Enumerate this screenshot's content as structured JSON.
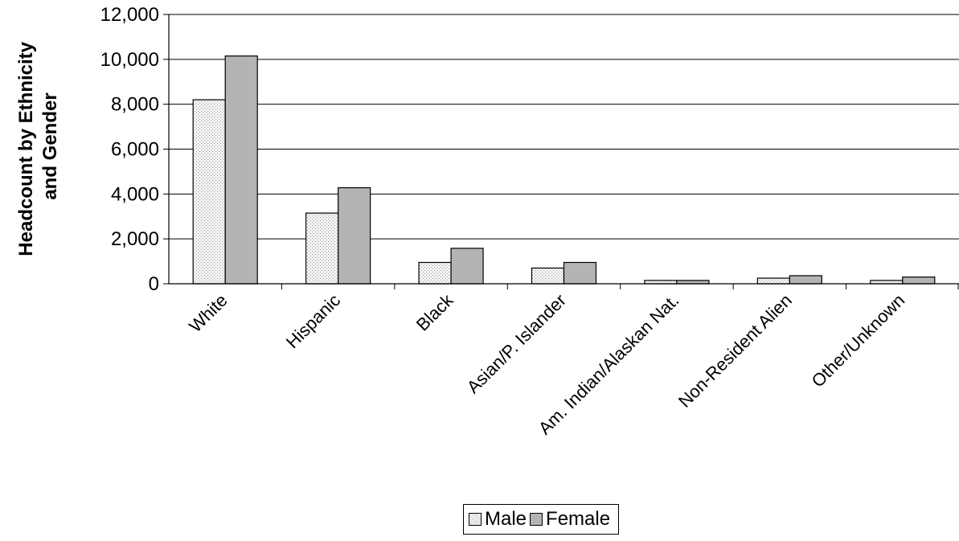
{
  "chart_data": {
    "type": "bar",
    "ylabel_lines": [
      "Headcount by Ethnicity",
      "and Gender"
    ],
    "ylim": [
      0,
      12000
    ],
    "ytick_values": [
      0,
      2000,
      4000,
      6000,
      8000,
      10000,
      12000
    ],
    "ytick_labels": [
      "0",
      "2,000",
      "4,000",
      "6,000",
      "8,000",
      "10,000",
      "12,000"
    ],
    "grid": true,
    "legend": "bottom",
    "categories": [
      "White",
      "Hispanic",
      "Black",
      "Asian/P. Islander",
      "Am. Indian/Alaskan Nat.",
      "Non-Resident Alien",
      "Other/Unknown"
    ],
    "series": [
      {
        "name": "Male",
        "color": "#ececec",
        "values": [
          8200,
          3150,
          950,
          700,
          150,
          250,
          150
        ]
      },
      {
        "name": "Female",
        "color": "#b4b4b4",
        "values": [
          10150,
          4280,
          1580,
          950,
          150,
          360,
          300
        ]
      }
    ]
  }
}
